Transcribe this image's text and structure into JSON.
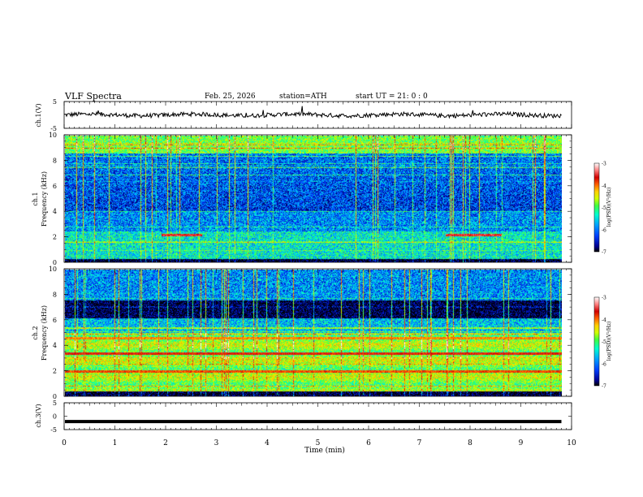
{
  "header": {
    "title": "VLF  Spectra",
    "date": "Feb. 25, 2026",
    "station": "station=ATH",
    "start_ut": "start  UT  =   21: 0  : 0"
  },
  "colors": {
    "waveform": "#000000",
    "background": "#ffffff",
    "colormap": [
      "#000000",
      "#000090",
      "#0040ff",
      "#00a0ff",
      "#00ffd0",
      "#40ff40",
      "#d0ff00",
      "#ffd000",
      "#ff6000",
      "#d00000",
      "#ff8080",
      "#ffffff"
    ]
  },
  "chart_data": [
    {
      "type": "line",
      "name": "ch1-waveform",
      "ylabel": "ch.1(V)",
      "yticks": [
        "5",
        "-5"
      ],
      "ylim": [
        -5,
        5
      ],
      "xlim": [
        0,
        10
      ],
      "trace": "noisy waveform centred near 0 V, amplitude about ±1 V, occasional spikes",
      "grid": false
    },
    {
      "type": "heatmap",
      "name": "ch1-spectrogram",
      "ylabel": "Frequency  (kHz)",
      "channel_label": "ch.1",
      "ylim": [
        0,
        10
      ],
      "xlim": [
        0,
        9.8
      ],
      "yticks": [
        "0",
        "2",
        "4",
        "6",
        "8",
        "10"
      ],
      "colorbar": {
        "label": "log(PSD)(V²/Hz)",
        "range": [
          -7,
          -3
        ],
        "ticks": [
          "-3",
          "-4",
          "-5",
          "-6",
          "-7"
        ]
      },
      "features": [
        {
          "kind": "bright band",
          "from_khz": 8.6,
          "to_khz": 10.0,
          "level": -5.2
        },
        {
          "kind": "narrow line",
          "freq_khz": 2.2,
          "from_min": 1.9,
          "to_min": 2.7,
          "level": -3.6
        },
        {
          "kind": "narrow line",
          "freq_khz": 2.2,
          "from_min": 7.5,
          "to_min": 8.6,
          "level": -3.6
        },
        {
          "kind": "strong lines",
          "from_khz": 0.0,
          "to_khz": 0.3,
          "level": -6.8
        }
      ]
    },
    {
      "type": "heatmap",
      "name": "ch2-spectrogram",
      "ylabel": "Frequency  (kHz)",
      "channel_label": "ch.2",
      "ylim": [
        0,
        10
      ],
      "xlim": [
        0,
        9.8
      ],
      "yticks": [
        "0",
        "2",
        "4",
        "6",
        "8",
        "10"
      ],
      "colorbar": {
        "label": "log(PSD)(V²/Hz)",
        "range": [
          -7,
          -3
        ],
        "ticks": [
          "-3",
          "-4",
          "-5",
          "-6",
          "-7"
        ]
      },
      "features": [
        {
          "kind": "dark band",
          "from_khz": 6.2,
          "to_khz": 7.6,
          "level": -6.9
        },
        {
          "kind": "bright band",
          "from_khz": 0.5,
          "to_khz": 5.0,
          "level": -5.0
        },
        {
          "kind": "narrow line",
          "freq_khz": 3.4,
          "from_min": 0.0,
          "to_min": 9.8,
          "level": -3.8
        },
        {
          "kind": "narrow line",
          "freq_khz": 2.0,
          "from_min": 0.0,
          "to_min": 9.8,
          "level": -4.0
        },
        {
          "kind": "narrow line",
          "freq_khz": 4.6,
          "from_min": 0.0,
          "to_min": 9.8,
          "level": -4.2
        }
      ]
    },
    {
      "type": "line",
      "name": "ch3-waveform",
      "ylabel": "ch.3(V)",
      "yticks": [
        "5",
        "0",
        "-5"
      ],
      "ylim": [
        -5,
        5
      ],
      "xlim": [
        0,
        10
      ],
      "constant_value": -2,
      "xlabel": "Time  (min)",
      "xticks": [
        "0",
        "1",
        "2",
        "3",
        "4",
        "5",
        "6",
        "7",
        "8",
        "9",
        "10"
      ],
      "grid": false
    }
  ]
}
